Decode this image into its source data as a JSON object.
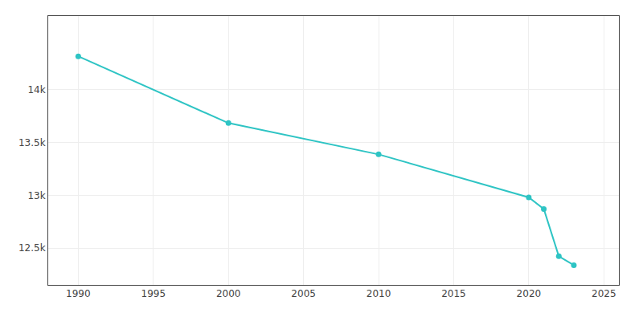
{
  "chart_data": {
    "type": "line",
    "x": [
      1990,
      2000,
      2010,
      2020,
      2021,
      2022,
      2023
    ],
    "series": [
      {
        "values": [
          14318,
          13685,
          13388,
          12980,
          12870,
          12422,
          12337
        ],
        "color": "#2EC4C4"
      }
    ],
    "marker": "circle",
    "xlim": [
      1988,
      2026
    ],
    "ylim": [
      12150,
      14700
    ],
    "xticks": [
      1990,
      1995,
      2000,
      2005,
      2010,
      2015,
      2020,
      2025
    ],
    "yticks": [
      {
        "value": 12500,
        "label": "12.5k"
      },
      {
        "value": 13000,
        "label": "13k"
      },
      {
        "value": 13500,
        "label": "13.5k"
      },
      {
        "value": 14000,
        "label": "14k"
      }
    ],
    "grid": true
  }
}
